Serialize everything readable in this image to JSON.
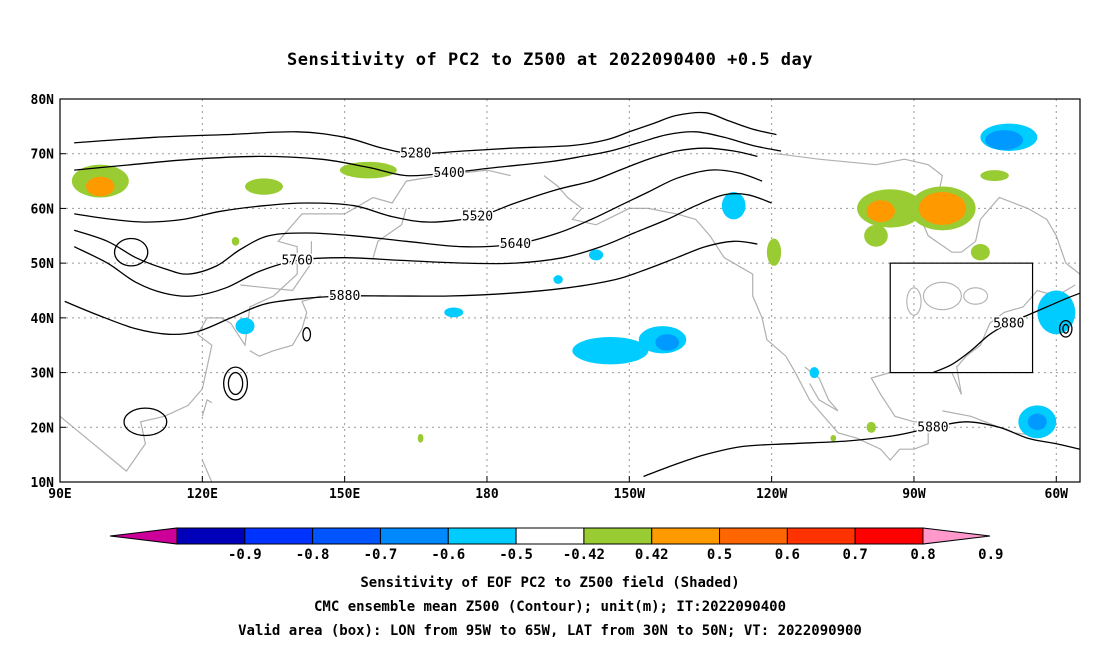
{
  "chart_data": {
    "type": "heatmap",
    "title": "Sensitivity of PC2 to Z500 at 2022090400 +0.5 day",
    "projection": "cylindrical lon-lat",
    "lon_range": [
      90,
      305
    ],
    "lat_range": [
      10,
      80
    ],
    "x_tick_labels": [
      {
        "lon": 90,
        "label": "90E"
      },
      {
        "lon": 120,
        "label": "120E"
      },
      {
        "lon": 150,
        "label": "150E"
      },
      {
        "lon": 180,
        "label": "180"
      },
      {
        "lon": 210,
        "label": "150W"
      },
      {
        "lon": 240,
        "label": "120W"
      },
      {
        "lon": 270,
        "label": "90W"
      },
      {
        "lon": 300,
        "label": "60W"
      }
    ],
    "y_tick_labels": [
      {
        "lat": 80,
        "label": "80N"
      },
      {
        "lat": 70,
        "label": "70N"
      },
      {
        "lat": 60,
        "label": "60N"
      },
      {
        "lat": 50,
        "label": "50N"
      },
      {
        "lat": 40,
        "label": "40N"
      },
      {
        "lat": 30,
        "label": "30N"
      },
      {
        "lat": 20,
        "label": "20N"
      },
      {
        "lat": 10,
        "label": "10N"
      }
    ],
    "grid": "dotted",
    "contour_series": [
      {
        "label": "5280",
        "pts": [
          [
            93,
            72
          ],
          [
            110,
            73
          ],
          [
            125,
            73.5
          ],
          [
            140,
            74
          ],
          [
            150,
            73
          ],
          [
            158,
            71
          ],
          [
            165,
            70
          ],
          [
            175,
            70.5
          ],
          [
            185,
            71
          ],
          [
            198,
            71.5
          ],
          [
            205,
            72.5
          ],
          [
            210,
            74
          ],
          [
            215,
            75.5
          ],
          [
            220,
            77
          ],
          [
            226,
            77.5
          ],
          [
            231,
            76
          ],
          [
            236,
            74.5
          ],
          [
            241,
            73.5
          ]
        ]
      },
      {
        "label": "5400",
        "pts": [
          [
            93,
            67
          ],
          [
            105,
            68
          ],
          [
            118,
            69
          ],
          [
            132,
            69.5
          ],
          [
            145,
            69
          ],
          [
            155,
            67.5
          ],
          [
            163,
            66
          ],
          [
            172,
            66.5
          ],
          [
            182,
            67.5
          ],
          [
            193,
            68.5
          ],
          [
            200,
            69.5
          ],
          [
            206,
            70.5
          ],
          [
            212,
            72
          ],
          [
            218,
            73.5
          ],
          [
            224,
            74
          ],
          [
            230,
            73
          ],
          [
            236,
            71.5
          ],
          [
            242,
            70.5
          ]
        ]
      },
      {
        "label": "5520",
        "pts": [
          [
            93,
            59
          ],
          [
            101,
            58
          ],
          [
            108,
            57.5
          ],
          [
            116,
            58
          ],
          [
            124,
            59.5
          ],
          [
            133,
            60.5
          ],
          [
            142,
            61
          ],
          [
            152,
            60.5
          ],
          [
            160,
            58.5
          ],
          [
            168,
            57.5
          ],
          [
            178,
            58.5
          ],
          [
            186,
            61
          ],
          [
            195,
            63.5
          ],
          [
            202,
            65
          ],
          [
            208,
            67
          ],
          [
            214,
            69
          ],
          [
            220,
            70.5
          ],
          [
            226,
            71
          ],
          [
            232,
            70.5
          ],
          [
            237,
            69.5
          ]
        ]
      },
      {
        "label": "5640",
        "pts": [
          [
            93,
            56
          ],
          [
            100,
            54
          ],
          [
            106,
            51
          ],
          [
            112,
            49
          ],
          [
            117,
            48
          ],
          [
            123,
            49.5
          ],
          [
            128,
            52.5
          ],
          [
            134,
            55
          ],
          [
            142,
            55.5
          ],
          [
            152,
            55
          ],
          [
            163,
            54
          ],
          [
            175,
            53
          ],
          [
            186,
            53.5
          ],
          [
            195,
            55.5
          ],
          [
            202,
            58
          ],
          [
            208,
            60.5
          ],
          [
            214,
            63
          ],
          [
            220,
            65.5
          ],
          [
            227,
            67
          ],
          [
            233,
            66.5
          ],
          [
            238,
            65
          ]
        ]
      },
      {
        "label": "5760",
        "pts": [
          [
            93,
            53
          ],
          [
            100,
            50
          ],
          [
            106,
            46.5
          ],
          [
            112,
            44.5
          ],
          [
            118,
            44
          ],
          [
            125,
            45.5
          ],
          [
            132,
            48.5
          ],
          [
            140,
            50.5
          ],
          [
            150,
            51
          ],
          [
            162,
            50.5
          ],
          [
            175,
            50
          ],
          [
            186,
            50
          ],
          [
            196,
            51
          ],
          [
            204,
            53
          ],
          [
            211,
            55.5
          ],
          [
            218,
            58
          ],
          [
            224,
            60.5
          ],
          [
            230,
            62.5
          ],
          [
            235,
            62.5
          ],
          [
            240,
            61
          ]
        ]
      },
      {
        "label": "5880",
        "pts": [
          [
            91,
            43
          ],
          [
            98,
            40.5
          ],
          [
            106,
            38
          ],
          [
            113,
            37
          ],
          [
            119,
            37.5
          ],
          [
            126,
            40
          ],
          [
            133,
            42.5
          ],
          [
            141,
            43.5
          ],
          [
            150,
            44
          ],
          [
            160,
            44
          ],
          [
            172,
            44
          ],
          [
            185,
            44.5
          ],
          [
            197,
            45.5
          ],
          [
            207,
            47
          ],
          [
            214,
            49
          ],
          [
            220,
            51
          ],
          [
            226,
            53
          ],
          [
            232,
            54
          ],
          [
            237,
            53.5
          ]
        ]
      },
      {
        "label": "5880",
        "pts": [
          [
            274,
            30
          ],
          [
            278,
            31.5
          ],
          [
            282,
            34
          ],
          [
            286,
            37
          ],
          [
            290,
            39
          ],
          [
            294,
            40.5
          ],
          [
            298,
            42
          ],
          [
            302,
            43.5
          ],
          [
            305,
            44.5
          ]
        ]
      },
      {
        "label": "5880",
        "pts": [
          [
            213,
            11
          ],
          [
            219,
            13
          ],
          [
            226,
            15
          ],
          [
            234,
            16.5
          ],
          [
            244,
            17
          ],
          [
            256,
            17.5
          ],
          [
            266,
            18.5
          ],
          [
            274,
            20
          ],
          [
            281,
            21
          ],
          [
            288,
            20
          ],
          [
            294,
            18
          ],
          [
            300,
            17
          ],
          [
            305,
            16
          ]
        ]
      }
    ],
    "shaded_regions": [
      {
        "value": 0.5,
        "color": "#99cc33",
        "lon": 98.5,
        "lat": 65,
        "rx": 6,
        "ry": 3
      },
      {
        "value": 0.6,
        "color": "#ff9900",
        "lon": 98.5,
        "lat": 64,
        "rx": 3,
        "ry": 1.8
      },
      {
        "value": 0.5,
        "color": "#99cc33",
        "lon": 133,
        "lat": 64,
        "rx": 4,
        "ry": 1.5
      },
      {
        "value": 0.5,
        "color": "#99cc33",
        "lon": 155,
        "lat": 67,
        "rx": 6,
        "ry": 1.5
      },
      {
        "value": 0.5,
        "color": "#99cc33",
        "lon": 240.5,
        "lat": 52,
        "rx": 1.5,
        "ry": 2.5
      },
      {
        "value": 0.5,
        "color": "#99cc33",
        "lon": 265,
        "lat": 60,
        "rx": 7,
        "ry": 3.5
      },
      {
        "value": 0.6,
        "color": "#ff9900",
        "lon": 263,
        "lat": 59.5,
        "rx": 3,
        "ry": 2
      },
      {
        "value": 0.5,
        "color": "#99cc33",
        "lon": 276,
        "lat": 60,
        "rx": 7,
        "ry": 4
      },
      {
        "value": 0.6,
        "color": "#ff9900",
        "lon": 276,
        "lat": 60,
        "rx": 5,
        "ry": 3
      },
      {
        "value": 0.5,
        "color": "#99cc33",
        "lon": 262,
        "lat": 55,
        "rx": 2.5,
        "ry": 2
      },
      {
        "value": 0.5,
        "color": "#99cc33",
        "lon": 287,
        "lat": 66,
        "rx": 3,
        "ry": 1
      },
      {
        "value": 0.5,
        "color": "#99cc33",
        "lon": 284,
        "lat": 52,
        "rx": 2,
        "ry": 1.5
      },
      {
        "value": 0.5,
        "color": "#99cc33",
        "lon": 261,
        "lat": 20,
        "rx": 1,
        "ry": 1
      },
      {
        "value": 0.5,
        "color": "#99cc33",
        "lon": 166,
        "lat": 18,
        "rx": 0.6,
        "ry": 0.8
      },
      {
        "value": 0.5,
        "color": "#99cc33",
        "lon": 127,
        "lat": 54,
        "rx": 0.8,
        "ry": 0.8
      },
      {
        "value": 0.5,
        "color": "#99cc33",
        "lon": 253,
        "lat": 18,
        "rx": 0.6,
        "ry": 0.6
      },
      {
        "value": -0.5,
        "color": "#00ccff",
        "lon": 232,
        "lat": 60.5,
        "rx": 2.5,
        "ry": 2.5
      },
      {
        "value": -0.5,
        "color": "#00ccff",
        "lon": 206,
        "lat": 34,
        "rx": 8,
        "ry": 2.5
      },
      {
        "value": -0.5,
        "color": "#00ccff",
        "lon": 217,
        "lat": 36,
        "rx": 5,
        "ry": 2.5
      },
      {
        "value": -0.6,
        "color": "#0099ff",
        "lon": 218,
        "lat": 35.5,
        "rx": 2.5,
        "ry": 1.5
      },
      {
        "value": -0.5,
        "color": "#00ccff",
        "lon": 203,
        "lat": 51.5,
        "rx": 1.5,
        "ry": 1
      },
      {
        "value": -0.5,
        "color": "#00ccff",
        "lon": 195,
        "lat": 47,
        "rx": 1,
        "ry": 0.8
      },
      {
        "value": -0.5,
        "color": "#00ccff",
        "lon": 173,
        "lat": 41,
        "rx": 2,
        "ry": 0.9
      },
      {
        "value": -0.5,
        "color": "#00ccff",
        "lon": 129,
        "lat": 38.5,
        "rx": 2,
        "ry": 1.5
      },
      {
        "value": -0.5,
        "color": "#00ccff",
        "lon": 290,
        "lat": 73,
        "rx": 6,
        "ry": 2.5
      },
      {
        "value": -0.6,
        "color": "#0099ff",
        "lon": 289,
        "lat": 72.5,
        "rx": 4,
        "ry": 1.8
      },
      {
        "value": -0.5,
        "color": "#00ccff",
        "lon": 300,
        "lat": 41,
        "rx": 4,
        "ry": 4
      },
      {
        "value": -0.5,
        "color": "#00ccff",
        "lon": 296,
        "lat": 21,
        "rx": 4,
        "ry": 3
      },
      {
        "value": -0.6,
        "color": "#0099ff",
        "lon": 296,
        "lat": 21,
        "rx": 2,
        "ry": 1.5
      },
      {
        "value": -0.5,
        "color": "#00ccff",
        "lon": 249,
        "lat": 30,
        "rx": 1,
        "ry": 1
      }
    ],
    "box": {
      "lon_min": 265,
      "lon_max": 295,
      "lat_min": 30,
      "lat_max": 50
    },
    "colorbar": {
      "type": "discrete",
      "labels": [
        "-0.9",
        "-0.8",
        "-0.7",
        "-0.6",
        "-0.5",
        "-0.42",
        "0.42",
        "0.5",
        "0.6",
        "0.7",
        "0.8",
        "0.9"
      ],
      "colors": [
        "#cc0099",
        "#0000bb",
        "#0033ff",
        "#0055ff",
        "#0088ff",
        "#00ccff",
        "#ffffff",
        "#99cc33",
        "#ff9900",
        "#ff6600",
        "#ff3300",
        "#ff0000",
        "#ff99cc"
      ]
    },
    "footer": [
      "Sensitivity of EOF PC2 to Z500 field (Shaded)",
      "CMC ensemble mean Z500 (Contour); unit(m); IT:2022090400",
      "Valid area (box): LON from 95W to 65W, LAT from 30N to 50N; VT: 2022090900"
    ]
  }
}
